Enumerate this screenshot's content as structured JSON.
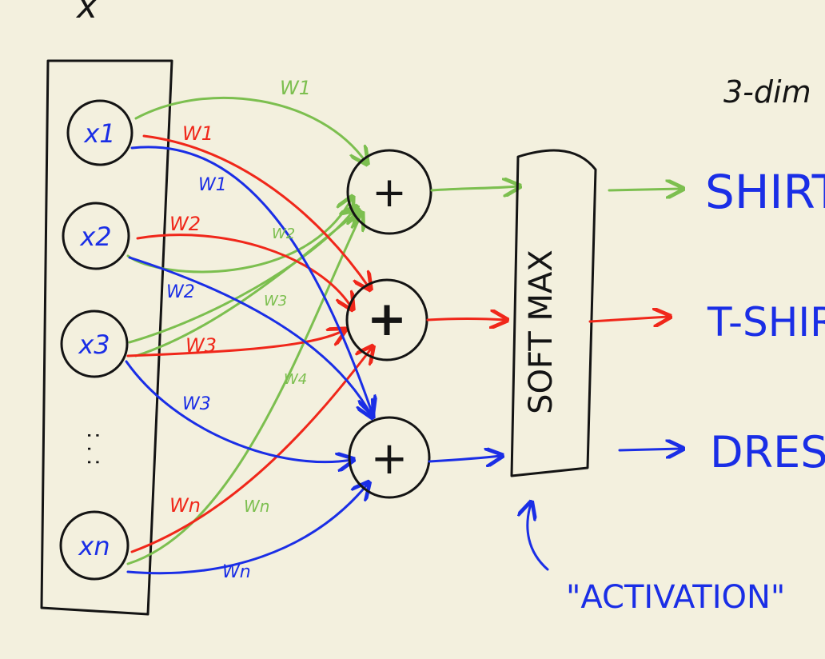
{
  "colors": {
    "background": "#f3f0de",
    "black": "#141414",
    "green": "#7cbf4f",
    "red": "#f0271a",
    "blue": "#1a2ee6"
  },
  "input_vector_label": "x",
  "inputs": [
    {
      "label": "x1"
    },
    {
      "label": "x2"
    },
    {
      "label": "x3"
    },
    {
      "label": "xn"
    }
  ],
  "ellipsis": ": . :",
  "weights": {
    "to_green": [
      "W1",
      "W2",
      "W3",
      "W4",
      "Wn"
    ],
    "to_red": [
      "W1",
      "W2",
      "W3",
      "Wn"
    ],
    "to_blue": [
      "W1",
      "W2",
      "W3",
      "Wn"
    ]
  },
  "sum_symbol": "+",
  "softmax_label": "SOFT MAX",
  "outputs": [
    {
      "label": "SHIRT",
      "color": "#7cbf4f"
    },
    {
      "label": "T-SHIRT",
      "color": "#f0271a"
    },
    {
      "label": "DRESS",
      "color": "#1a2ee6"
    }
  ],
  "output_header": "3-dim",
  "activation_label": "\"ACTIVATION\""
}
